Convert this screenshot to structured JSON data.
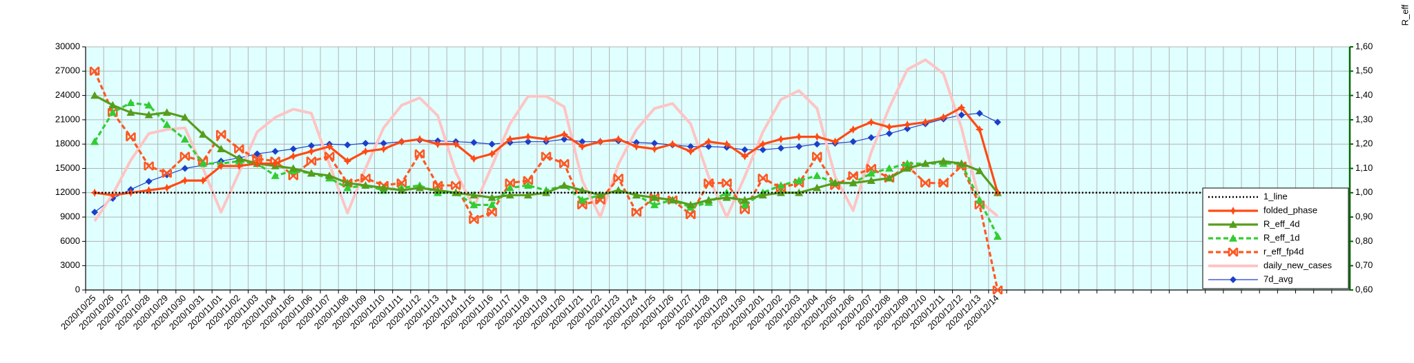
{
  "chart_data": {
    "type": "line",
    "y2_axis_label": "R_eff",
    "categories": [
      "2020/10/25",
      "2020/10/26",
      "2020/10/27",
      "2020/10/28",
      "2020/10/29",
      "2020/10/30",
      "2020/10/31",
      "2020/11/01",
      "2020/11/02",
      "2020/11/03",
      "2020/11/04",
      "2020/11/05",
      "2020/11/06",
      "2020/11/07",
      "2020/11/08",
      "2020/11/09",
      "2020/11/10",
      "2020/11/11",
      "2020/11/12",
      "2020/11/13",
      "2020/11/14",
      "2020/11/15",
      "2020/11/16",
      "2020/11/17",
      "2020/11/18",
      "2020/11/19",
      "2020/11/20",
      "2020/11/21",
      "2020/11/22",
      "2020/11/23",
      "2020/11/24",
      "2020/11/25",
      "2020/11/26",
      "2020/11/27",
      "2020/11/28",
      "2020/11/29",
      "2020/11/30",
      "2020/12/01",
      "2020/12/02",
      "2020/12/03",
      "2020/12/04",
      "2020/12/05",
      "2020/12/06",
      "2020/12/07",
      "2020/12/08",
      "2020/12/09",
      "2020/12/10",
      "2020/12/11",
      "2020/12/12",
      "2020/12/13",
      "2020/12/14",
      null,
      null,
      null,
      null,
      null,
      null,
      null,
      null,
      null,
      null,
      null,
      null,
      null,
      null,
      null,
      null,
      null,
      null,
      null
    ],
    "ylim": [
      0,
      30000
    ],
    "yticks": [
      0,
      3000,
      6000,
      9000,
      12000,
      15000,
      18000,
      21000,
      24000,
      27000,
      30000
    ],
    "y2lim": [
      0.6,
      1.6
    ],
    "y2ticks": [
      {
        "value": 0.6,
        "label": "0,60"
      },
      {
        "value": 0.7,
        "label": "0,70"
      },
      {
        "value": 0.8,
        "label": "0,80"
      },
      {
        "value": 0.9,
        "label": "0,90"
      },
      {
        "value": 1.0,
        "label": "1,00"
      },
      {
        "value": 1.1,
        "label": "1,10"
      },
      {
        "value": 1.2,
        "label": "1,20"
      },
      {
        "value": 1.3,
        "label": "1,30"
      },
      {
        "value": 1.4,
        "label": "1,40"
      },
      {
        "value": 1.5,
        "label": "1,50"
      },
      {
        "value": 1.6,
        "label": "1,60"
      }
    ],
    "grid": true,
    "legend": "lower right",
    "series": [
      {
        "name": "1_line",
        "color": "#000000",
        "axis": "y2",
        "dash": "dotted",
        "marker": "none",
        "values": [
          1,
          1,
          1,
          1,
          1,
          1,
          1,
          1,
          1,
          1,
          1,
          1,
          1,
          1,
          1,
          1,
          1,
          1,
          1,
          1,
          1,
          1,
          1,
          1,
          1,
          1,
          1,
          1,
          1,
          1,
          1,
          1,
          1,
          1,
          1,
          1,
          1,
          1,
          1,
          1,
          1,
          1,
          1,
          1,
          1,
          1,
          1,
          1,
          1,
          1,
          1,
          1,
          1,
          1,
          1,
          1,
          1,
          1,
          1,
          1,
          1,
          1,
          1,
          1,
          1,
          1,
          1,
          1,
          1,
          1
        ]
      },
      {
        "name": "folded_phase",
        "color": "#ff4a14",
        "axis": "y2",
        "dash": "solid",
        "marker": "star",
        "values": [
          1.0,
          0.99,
          1.0,
          1.01,
          1.02,
          1.05,
          1.05,
          1.11,
          1.11,
          1.12,
          1.12,
          1.15,
          1.17,
          1.19,
          1.13,
          1.17,
          1.18,
          1.21,
          1.22,
          1.2,
          1.2,
          1.14,
          1.16,
          1.22,
          1.23,
          1.22,
          1.24,
          1.19,
          1.21,
          1.22,
          1.19,
          1.18,
          1.2,
          1.17,
          1.21,
          1.2,
          1.15,
          1.2,
          1.22,
          1.23,
          1.23,
          1.21,
          1.26,
          1.29,
          1.27,
          1.28,
          1.29,
          1.31,
          1.35,
          1.26,
          1.0,
          null,
          null,
          null,
          null,
          null,
          null,
          null,
          null,
          null,
          null,
          null,
          null,
          null,
          null,
          null,
          null,
          null,
          null,
          null
        ]
      },
      {
        "name": "R_eff_4d",
        "color": "#579d1c",
        "axis": "y2",
        "dash": "solid",
        "marker": "triangle",
        "values": [
          1.4,
          1.36,
          1.33,
          1.32,
          1.33,
          1.31,
          1.24,
          1.18,
          1.14,
          1.12,
          1.11,
          1.1,
          1.08,
          1.07,
          1.04,
          1.03,
          1.02,
          1.01,
          1.02,
          1.01,
          1.0,
          0.99,
          0.98,
          0.99,
          0.99,
          1.0,
          1.03,
          1.01,
          0.99,
          1.01,
          0.99,
          0.98,
          0.97,
          0.95,
          0.97,
          0.98,
          0.97,
          0.99,
          1.0,
          1.0,
          1.02,
          1.04,
          1.04,
          1.05,
          1.06,
          1.1,
          1.12,
          1.13,
          1.12,
          1.09,
          1.0,
          null,
          null,
          null,
          null,
          null,
          null,
          null,
          null,
          null,
          null,
          null,
          null,
          null,
          null,
          null,
          null,
          null,
          null,
          null
        ]
      },
      {
        "name": "R_eff_1d",
        "color": "#33cc33",
        "axis": "y2",
        "dash": "dashed",
        "marker": "triangle",
        "values": [
          1.21,
          1.33,
          1.37,
          1.36,
          1.28,
          1.22,
          1.12,
          1.12,
          1.13,
          1.12,
          1.07,
          1.09,
          1.08,
          1.06,
          1.02,
          1.03,
          1.01,
          1.02,
          1.03,
          1.0,
          1.0,
          0.95,
          0.95,
          1.02,
          1.03,
          1.01,
          1.03,
          0.97,
          0.99,
          1.01,
          0.99,
          0.95,
          0.97,
          0.94,
          0.96,
          1.0,
          0.95,
          1.0,
          1.03,
          1.05,
          1.07,
          1.04,
          1.04,
          1.08,
          1.1,
          1.12,
          1.12,
          1.12,
          1.12,
          0.97,
          0.82,
          null,
          null,
          null,
          null,
          null,
          null,
          null,
          null,
          null,
          null,
          null,
          null,
          null,
          null,
          null,
          null,
          null,
          null,
          null
        ]
      },
      {
        "name": "r_eff_fp4d",
        "color": "#ff5722",
        "axis": "y2",
        "dash": "dashed",
        "marker": "x",
        "values": [
          1.5,
          1.33,
          1.23,
          1.11,
          1.08,
          1.15,
          1.13,
          1.24,
          1.18,
          1.14,
          1.13,
          1.07,
          1.13,
          1.15,
          1.04,
          1.06,
          1.03,
          1.04,
          1.16,
          1.03,
          1.03,
          0.89,
          0.92,
          1.04,
          1.05,
          1.15,
          1.12,
          0.95,
          0.97,
          1.06,
          0.92,
          0.98,
          0.97,
          0.91,
          1.04,
          1.04,
          0.93,
          1.06,
          1.02,
          1.04,
          1.15,
          1.03,
          1.07,
          1.1,
          1.06,
          1.11,
          1.04,
          1.04,
          1.11,
          0.95,
          0.6,
          null,
          null,
          null,
          null,
          null,
          null,
          null,
          null,
          null,
          null,
          null,
          null,
          null,
          null,
          null,
          null,
          null,
          null,
          null
        ]
      },
      {
        "name": "daily_new_cases",
        "color": "#ffc4c4",
        "axis": "y",
        "dash": "solid",
        "marker": "none",
        "values": [
          8500,
          11800,
          16000,
          19300,
          19800,
          20000,
          15000,
          9600,
          14500,
          19500,
          21300,
          22300,
          21800,
          15500,
          9500,
          15000,
          20000,
          22800,
          23700,
          21500,
          14500,
          10200,
          15300,
          20500,
          23900,
          23900,
          22600,
          13500,
          9000,
          15500,
          19800,
          22400,
          23000,
          20500,
          14000,
          9000,
          14000,
          19500,
          23500,
          24600,
          22400,
          14000,
          9800,
          17000,
          22500,
          27200,
          28400,
          26700,
          20000,
          11000,
          9100,
          null,
          null,
          null,
          null,
          null,
          null,
          null,
          null,
          null,
          null,
          null,
          null,
          null,
          null,
          null,
          null,
          null,
          null,
          null
        ]
      },
      {
        "name": "7d_avg",
        "color": "#1a3fcc",
        "axis": "y",
        "dash": "solid",
        "marker": "diamond",
        "values": [
          9600,
          11300,
          12400,
          13400,
          14200,
          15000,
          15400,
          15900,
          16300,
          16800,
          17100,
          17400,
          17800,
          18000,
          17900,
          18100,
          18100,
          18300,
          18500,
          18400,
          18300,
          18200,
          18000,
          18200,
          18300,
          18300,
          18600,
          18300,
          18300,
          18400,
          18200,
          18100,
          17900,
          17700,
          17700,
          17600,
          17300,
          17300,
          17500,
          17700,
          18000,
          18100,
          18300,
          18800,
          19300,
          19900,
          20500,
          21100,
          21600,
          21800,
          20700,
          null,
          null,
          null,
          null,
          null,
          null,
          null,
          null,
          null,
          null,
          null,
          null,
          null,
          null,
          null,
          null,
          null,
          null,
          null
        ]
      }
    ]
  }
}
